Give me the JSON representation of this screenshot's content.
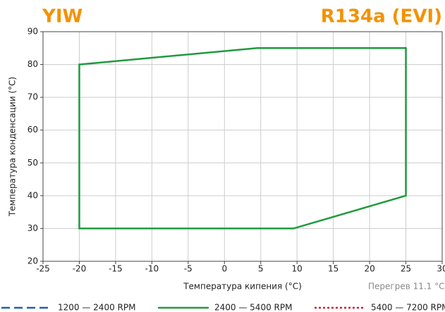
{
  "chart_data": {
    "type": "line",
    "title_left": "YIW",
    "title_right": "R134a (EVI)",
    "xlabel": "Температура кипения (°C)",
    "ylabel": "Температура конденсации (°C)",
    "annotation": "Перегрев 11.1 °C",
    "xlim": [
      -25,
      30
    ],
    "xticks": [
      -25,
      -20,
      -15,
      -10,
      -5,
      0,
      5,
      10,
      15,
      20,
      25,
      30
    ],
    "ylim": [
      20,
      90
    ],
    "yticks": [
      20,
      30,
      40,
      50,
      60,
      70,
      80,
      90
    ],
    "grid": true,
    "series": [
      {
        "name": "1200 — 2400 RPM",
        "color": "#1f5fb4",
        "dash": "dashed",
        "x": [],
        "values": []
      },
      {
        "name": "2400 — 5400 RPM",
        "color": "#1f9a3e",
        "dash": "solid",
        "closed": true,
        "x": [
          -20,
          4.5,
          25,
          25,
          9.5,
          -20
        ],
        "values": [
          80,
          85,
          85,
          40,
          30,
          30
        ]
      },
      {
        "name": "5400 — 7200 RPM",
        "color": "#d7192a",
        "dash": "dotted",
        "x": [],
        "values": []
      }
    ]
  }
}
